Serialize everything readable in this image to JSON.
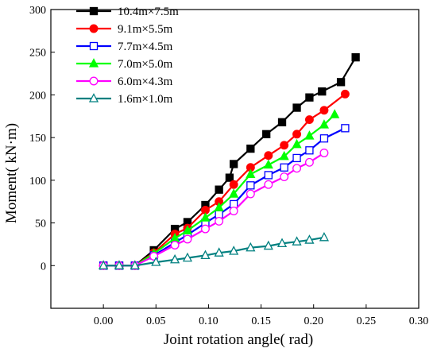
{
  "chart_data": {
    "type": "line",
    "xlabel": "Joint rotation angle( rad)",
    "ylabel": "Moment( kN·m)",
    "xlim": [
      -0.05,
      0.3
    ],
    "ylim": [
      -50,
      300
    ],
    "xticks": [
      0.0,
      0.05,
      0.1,
      0.15,
      0.2,
      0.25,
      0.3
    ],
    "xtick_labels": [
      "0.00",
      "0.05",
      "0.10",
      "0.15",
      "0.20",
      "0.25",
      "0.30"
    ],
    "yticks": [
      0,
      50,
      100,
      150,
      200,
      250,
      300
    ],
    "ytick_labels": [
      "0",
      "50",
      "100",
      "150",
      "200",
      "250",
      "300"
    ],
    "grid": false,
    "legend_position": "top-left",
    "series": [
      {
        "name": "10.4m×7.5m",
        "color": "#000000",
        "marker": "square-filled",
        "x": [
          0.0,
          0.015,
          0.03,
          0.048,
          0.068,
          0.08,
          0.097,
          0.11,
          0.12,
          0.124,
          0.14,
          0.155,
          0.17,
          0.184,
          0.196,
          0.208,
          0.226,
          0.24
        ],
        "y": [
          0,
          0,
          0,
          18,
          43,
          51,
          71,
          89,
          103,
          119,
          137,
          154,
          168,
          185,
          197,
          204,
          215,
          244
        ]
      },
      {
        "name": "9.1m×5.5m",
        "color": "#ff0000",
        "marker": "circle-filled",
        "x": [
          0.0,
          0.015,
          0.03,
          0.048,
          0.068,
          0.08,
          0.097,
          0.11,
          0.124,
          0.14,
          0.157,
          0.172,
          0.184,
          0.196,
          0.21,
          0.23
        ],
        "y": [
          0,
          0,
          0,
          15,
          37,
          44,
          65,
          75,
          95,
          115,
          129,
          141,
          154,
          171,
          182,
          201
        ]
      },
      {
        "name": "7.7m×4.5m",
        "color": "#0000ff",
        "marker": "square-open",
        "x": [
          0.0,
          0.015,
          0.03,
          0.048,
          0.068,
          0.08,
          0.097,
          0.11,
          0.124,
          0.14,
          0.157,
          0.172,
          0.184,
          0.196,
          0.21,
          0.23
        ],
        "y": [
          0,
          0,
          0,
          12,
          27,
          36,
          50,
          60,
          72,
          94,
          106,
          115,
          126,
          135,
          149,
          161
        ]
      },
      {
        "name": "7.0m×5.0m",
        "color": "#00ff00",
        "marker": "triangle-filled",
        "x": [
          0.0,
          0.015,
          0.03,
          0.048,
          0.068,
          0.08,
          0.097,
          0.11,
          0.124,
          0.14,
          0.157,
          0.172,
          0.184,
          0.196,
          0.21,
          0.22
        ],
        "y": [
          0,
          0,
          0,
          14,
          32,
          41,
          56,
          68,
          84,
          107,
          118,
          128,
          142,
          152,
          165,
          177
        ]
      },
      {
        "name": "6.0m×4.3m",
        "color": "#ff00ff",
        "marker": "circle-open",
        "x": [
          0.0,
          0.015,
          0.03,
          0.048,
          0.068,
          0.08,
          0.097,
          0.11,
          0.124,
          0.14,
          0.157,
          0.172,
          0.184,
          0.196,
          0.21
        ],
        "y": [
          0,
          0,
          0,
          11,
          24,
          31,
          43,
          52,
          64,
          84,
          95,
          104,
          114,
          121,
          132
        ]
      },
      {
        "name": "1.6m×1.0m",
        "color": "#008080",
        "marker": "triangle-open",
        "x": [
          0.0,
          0.015,
          0.03,
          0.05,
          0.068,
          0.08,
          0.097,
          0.11,
          0.124,
          0.14,
          0.157,
          0.17,
          0.184,
          0.196,
          0.21
        ],
        "y": [
          0,
          0,
          0,
          4,
          7,
          9,
          12,
          15,
          17,
          21,
          23,
          26,
          28,
          30,
          33
        ]
      }
    ]
  }
}
